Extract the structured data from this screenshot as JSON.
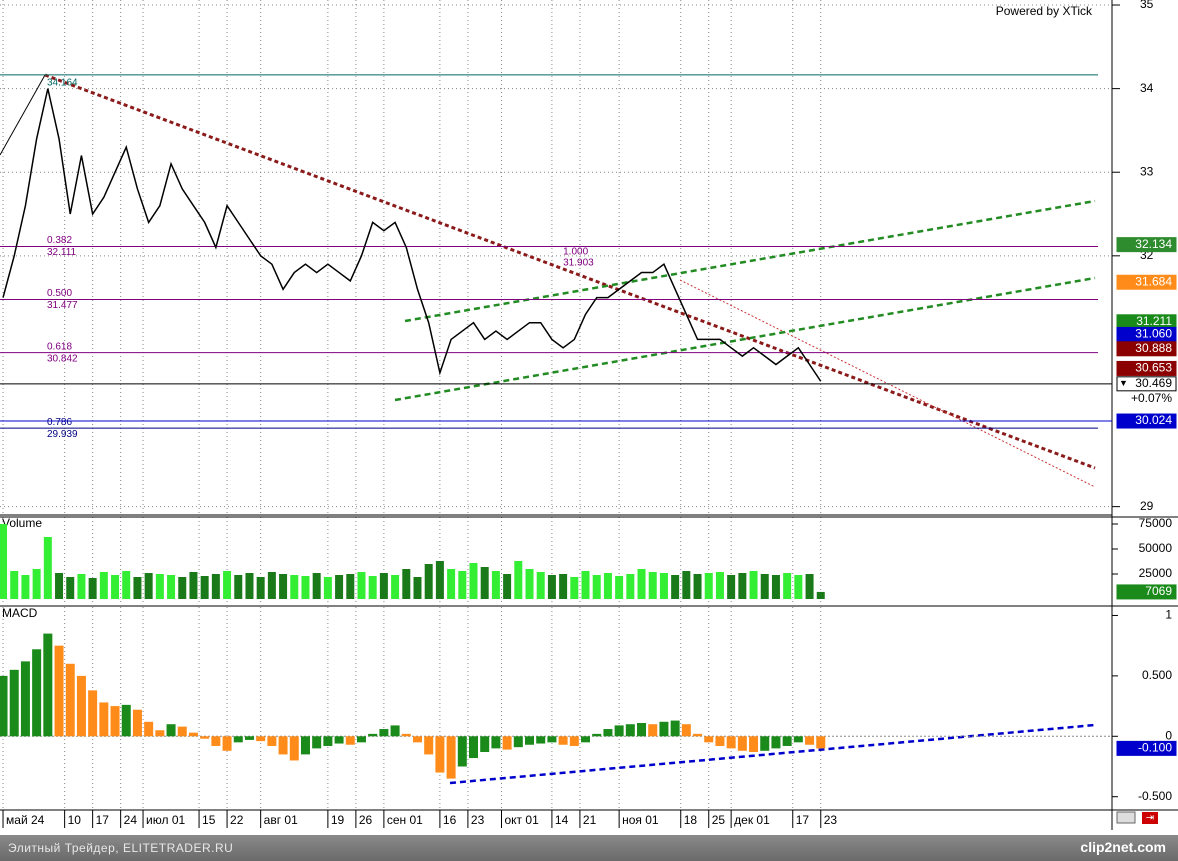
{
  "header": {
    "powered_by": "Powered by XTick"
  },
  "footer": {
    "site": "Элитный Трейдер, ELITETRADER.RU",
    "logo": "clip2net.com"
  },
  "chart_data": [
    {
      "type": "line",
      "color": "#000000",
      "x": [
        0,
        2,
        4,
        6,
        8,
        10,
        12,
        14,
        16,
        18,
        20,
        22,
        24,
        26,
        28,
        30,
        32,
        34,
        36,
        38,
        40,
        42,
        44,
        46,
        48,
        50,
        52,
        54,
        56,
        58,
        60,
        62,
        64,
        66,
        68,
        70,
        72,
        74,
        76,
        78,
        80,
        82,
        84,
        86,
        88,
        90,
        92,
        94,
        96,
        98,
        100,
        102,
        104,
        106,
        108,
        110,
        112,
        114,
        116,
        118,
        120,
        122,
        124,
        126,
        128,
        130,
        132,
        134,
        136,
        138,
        140,
        142,
        144,
        146
      ],
      "values": [
        31.5,
        32.0,
        32.6,
        33.4,
        34.0,
        33.4,
        32.5,
        33.2,
        32.5,
        32.7,
        33.0,
        33.3,
        32.8,
        32.4,
        32.6,
        33.1,
        32.8,
        32.6,
        32.4,
        32.1,
        32.6,
        32.4,
        32.2,
        32.0,
        31.9,
        31.6,
        31.8,
        31.9,
        31.8,
        31.9,
        31.8,
        31.7,
        32.0,
        32.4,
        32.3,
        32.4,
        32.1,
        31.6,
        31.2,
        30.6,
        31.0,
        31.1,
        31.2,
        31.0,
        31.1,
        31.0,
        31.1,
        31.2,
        31.2,
        31.0,
        30.9,
        31.0,
        31.3,
        31.5,
        31.5,
        31.6,
        31.7,
        31.8,
        31.8,
        31.9,
        31.6,
        31.3,
        31.0,
        31.0,
        31.0,
        30.9,
        30.8,
        30.9,
        30.8,
        30.7,
        30.8,
        30.9,
        30.7,
        30.5
      ],
      "xlim": [
        -0.54,
        195.5
      ],
      "ylim": [
        28.9,
        35.06
      ],
      "yticks": [
        29,
        32,
        33,
        34,
        35
      ],
      "grid": true,
      "levels": [
        {
          "value": 34.164,
          "label": "34.164",
          "color": "#006666"
        },
        {
          "value": 32.111,
          "ratio": "0.382",
          "label": "32.111",
          "color": "#800080"
        },
        {
          "value": 31.477,
          "ratio": "0.500",
          "label": "31.477",
          "color": "#800080"
        },
        {
          "value": 30.842,
          "ratio": "0.618",
          "label": "30.842",
          "color": "#800080"
        },
        {
          "value": 29.939,
          "ratio": "0.786",
          "label": "29.939",
          "color": "#000080"
        }
      ],
      "annotation": {
        "x": 100,
        "value": 31.903,
        "ratio": "1.000",
        "label": "31.903"
      },
      "tags": [
        {
          "value": 32.134,
          "label": "32.134",
          "color": "#2e8b2e",
          "text_color": "#ffffff"
        },
        {
          "value": 31.684,
          "label": "31.684",
          "color": "#ff8c1a",
          "text_color": "#ffffff"
        },
        {
          "value": 31.211,
          "label": "31.211",
          "color": "#1a8a1a",
          "text_color": "#ffffff"
        },
        {
          "value": 31.06,
          "label": "31.060",
          "color": "#0000cc",
          "text_color": "#ffffff"
        },
        {
          "value": 30.888,
          "label": "30.888",
          "color": "#8b0000",
          "text_color": "#ffffff"
        },
        {
          "value": 30.653,
          "label": "30.653",
          "color": "#8b0000",
          "text_color": "#ffffff"
        },
        {
          "value": 30.469,
          "label": "30.469",
          "color": "#ffffff",
          "text_color": "#000000",
          "line": true
        },
        {
          "value": 30.024,
          "label": "30.024",
          "color": "#0000cc",
          "text_color": "#ffffff",
          "line": true
        }
      ],
      "change": "+0.07%"
    },
    {
      "type": "bar",
      "title": "Volume",
      "colors": {
        "up": "#33ee33",
        "down": "#1a7a1a"
      },
      "x": [
        0,
        2,
        4,
        6,
        8,
        10,
        12,
        14,
        16,
        18,
        20,
        22,
        24,
        26,
        28,
        30,
        32,
        34,
        36,
        38,
        40,
        42,
        44,
        46,
        48,
        50,
        52,
        54,
        56,
        58,
        60,
        62,
        64,
        66,
        68,
        70,
        72,
        74,
        76,
        78,
        80,
        82,
        84,
        86,
        88,
        90,
        92,
        94,
        96,
        98,
        100,
        102,
        104,
        106,
        108,
        110,
        112,
        114,
        116,
        118,
        120,
        122,
        124,
        126,
        128,
        130,
        132,
        134,
        136,
        138,
        140,
        142,
        144,
        146
      ],
      "values": [
        75000,
        28000,
        24000,
        30000,
        62000,
        26000,
        22000,
        25000,
        21000,
        27000,
        24000,
        28000,
        22000,
        26000,
        25000,
        24000,
        22000,
        27000,
        23000,
        25000,
        28000,
        24000,
        26000,
        22000,
        27000,
        25000,
        24000,
        23000,
        26000,
        22000,
        24000,
        25000,
        27000,
        23000,
        26000,
        24000,
        30000,
        22000,
        35000,
        38000,
        30000,
        28000,
        36000,
        32000,
        28000,
        25000,
        38000,
        30000,
        27000,
        24000,
        25000,
        22000,
        28000,
        24000,
        26000,
        23000,
        25000,
        30000,
        27000,
        26000,
        24000,
        28000,
        25000,
        26000,
        27000,
        24000,
        26000,
        28000,
        25000,
        24000,
        26000,
        24000,
        25000,
        7069
      ],
      "xlim": [
        -0.54,
        195.5
      ],
      "ylim": [
        -6000,
        82000
      ],
      "yticks": [
        25000,
        50000,
        75000
      ],
      "tag": {
        "value": 7069,
        "label": "7069",
        "color": "#1a8a1a"
      }
    },
    {
      "type": "histogram",
      "title": "MACD",
      "colors": {
        "up": "#1a8a1a",
        "down": "#ff8c1a"
      },
      "x": [
        0,
        2,
        4,
        6,
        8,
        10,
        12,
        14,
        16,
        18,
        20,
        22,
        24,
        26,
        28,
        30,
        32,
        34,
        36,
        38,
        40,
        42,
        44,
        46,
        48,
        50,
        52,
        54,
        56,
        58,
        60,
        62,
        64,
        66,
        68,
        70,
        72,
        74,
        76,
        78,
        80,
        82,
        84,
        86,
        88,
        90,
        92,
        94,
        96,
        98,
        100,
        102,
        104,
        106,
        108,
        110,
        112,
        114,
        116,
        118,
        120,
        122,
        124,
        126,
        128,
        130,
        132,
        134,
        136,
        138,
        140,
        142,
        144,
        146
      ],
      "values": [
        0.5,
        0.55,
        0.62,
        0.72,
        0.85,
        0.75,
        0.6,
        0.5,
        0.38,
        0.28,
        0.25,
        0.26,
        0.22,
        0.12,
        0.05,
        0.1,
        0.08,
        0.03,
        -0.02,
        -0.08,
        -0.12,
        -0.05,
        -0.03,
        -0.04,
        -0.08,
        -0.15,
        -0.2,
        -0.15,
        -0.1,
        -0.08,
        -0.06,
        -0.07,
        -0.05,
        0.02,
        0.06,
        0.09,
        0.02,
        -0.05,
        -0.15,
        -0.3,
        -0.35,
        -0.25,
        -0.18,
        -0.13,
        -0.1,
        -0.11,
        -0.09,
        -0.07,
        -0.06,
        -0.05,
        -0.07,
        -0.08,
        -0.05,
        0.02,
        0.06,
        0.09,
        0.1,
        0.11,
        0.1,
        0.12,
        0.13,
        0.1,
        0.02,
        -0.05,
        -0.08,
        -0.1,
        -0.12,
        -0.13,
        -0.12,
        -0.1,
        -0.08,
        -0.05,
        -0.07,
        -0.1
      ],
      "xlim": [
        -0.54,
        195.5
      ],
      "ylim": [
        -0.61,
        1.07
      ],
      "yticks": [
        1,
        {
          "value": 0.5,
          "label": "0.500"
        },
        0,
        {
          "value": -0.5,
          "label": "-0.500"
        }
      ],
      "xticks": [
        {
          "value": 0,
          "label": "май 24"
        },
        {
          "value": 11,
          "label": "10"
        },
        {
          "value": 16,
          "label": "17"
        },
        {
          "value": 21,
          "label": "24"
        },
        {
          "value": 25,
          "label": "июл 01"
        },
        {
          "value": 35,
          "label": "15"
        },
        {
          "value": 40,
          "label": "22"
        },
        {
          "value": 46,
          "label": "авг 01"
        },
        {
          "value": 58,
          "label": "19"
        },
        {
          "value": 63,
          "label": "26"
        },
        {
          "value": 68,
          "label": "сен 01"
        },
        {
          "value": 78,
          "label": "16"
        },
        {
          "value": 83,
          "label": "23"
        },
        {
          "value": 89,
          "label": "окт 01"
        },
        {
          "value": 98,
          "label": "14"
        },
        {
          "value": 103,
          "label": "21"
        },
        {
          "value": 110,
          "label": "ноя 01"
        },
        {
          "value": 121,
          "label": "18"
        },
        {
          "value": 126,
          "label": "25"
        },
        {
          "value": 130,
          "label": "дек 01"
        },
        {
          "value": 141,
          "label": "17"
        },
        {
          "value": 146,
          "label": "23"
        }
      ],
      "tag": {
        "value": -0.1,
        "label": "-0.100",
        "color": "#0000cc"
      }
    }
  ]
}
